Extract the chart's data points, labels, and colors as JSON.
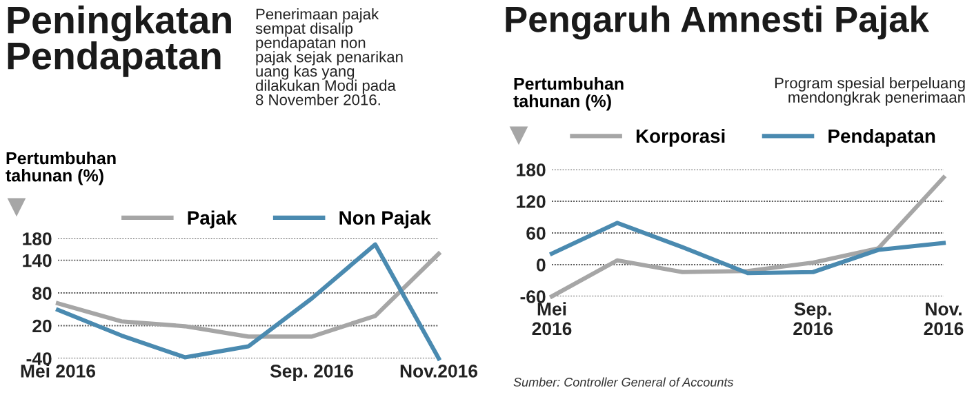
{
  "chart_data": [
    {
      "type": "line",
      "title": "Peningkatan\nPendapatan",
      "subtitle": "Penerimaan pajak\nsempat disalip\npendapatan non\npajak sejak penarikan\nuang kas yang\ndilakukan Modi pada\n8 November 2016.",
      "ylabel": "Pertumbuhan\ntahunan (%)",
      "categories": [
        "Mei 2016",
        null,
        null,
        null,
        "Sep. 2016",
        null,
        "Nov.2016"
      ],
      "series": [
        {
          "name": "Pajak",
          "color": "#a6a6a6",
          "values": [
            61,
            28,
            19,
            0,
            0,
            38,
            152
          ]
        },
        {
          "name": "Non Pajak",
          "color": "#4a8ab0",
          "values": [
            49,
            2,
            -38,
            -18,
            70,
            169,
            -40
          ]
        }
      ],
      "ylim": [
        -40,
        180
      ],
      "yticks": [
        -40,
        20,
        80,
        140,
        180
      ],
      "grid": "y",
      "legend": "top right",
      "line_style": "solid",
      "marker": "none"
    },
    {
      "type": "line",
      "title": "Pengaruh Amnesti Pajak",
      "subtitle": "Program spesial berpeluang\nmendongkrak penerimaan",
      "ylabel": "Pertumbuhan\ntahunan (%)",
      "categories": [
        "Mei\n2016",
        null,
        null,
        null,
        "Sep.\n2016",
        null,
        "Nov.\n2016"
      ],
      "series": [
        {
          "name": "Korporasi",
          "color": "#a6a6a6",
          "values": [
            -60,
            8,
            -14,
            -12,
            4,
            31,
            165
          ]
        },
        {
          "name": "Pendapatan",
          "color": "#4a8ab0",
          "values": [
            21,
            79,
            33,
            -16,
            -14,
            28,
            41
          ]
        }
      ],
      "ylim": [
        -60,
        180
      ],
      "yticks": [
        -60,
        0,
        60,
        120,
        180
      ],
      "grid": "y",
      "legend": "top right",
      "line_style": "solid",
      "marker": "none",
      "annotations": [
        "Sumber: Controller General of Accounts"
      ]
    }
  ]
}
